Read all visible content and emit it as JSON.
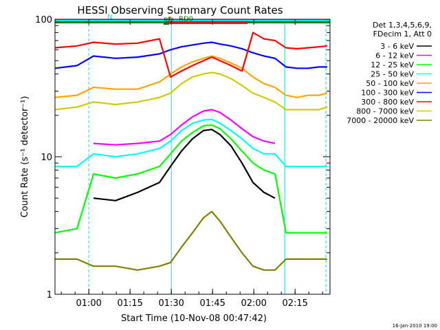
{
  "chart_data": {
    "type": "line",
    "title": "HESSI Observing Summary Count Rates",
    "xlabel": "Start Time (10-Nov-08 00:47:42)",
    "ylabel": "Count Rate (s⁻¹ detector⁻¹)",
    "x_unit": "minutes after 00:47:42",
    "xlim": [
      0,
      100
    ],
    "ylim": [
      1,
      100
    ],
    "yscale": "log",
    "x_ticks": [
      {
        "value": 12.3,
        "label": "01:00"
      },
      {
        "value": 27.3,
        "label": "01:15"
      },
      {
        "value": 42.3,
        "label": "01:30"
      },
      {
        "value": 57.3,
        "label": "01:45"
      },
      {
        "value": 72.3,
        "label": "02:00"
      },
      {
        "value": 87.3,
        "label": "02:15"
      }
    ],
    "y_ticks": [
      {
        "value": 1,
        "label": "1"
      },
      {
        "value": 10,
        "label": "10"
      },
      {
        "value": 100,
        "label": "100"
      }
    ],
    "legend_position": "right",
    "legend_header": [
      "Det 1,3,4,5,6,9,",
      "FDecim 1, Att 0"
    ],
    "footer_date": "16-Jan-2010 19:00",
    "flags": [
      {
        "label": "N",
        "color": "#00e5e5",
        "y": 95,
        "x_start": 0,
        "x_end": 100
      },
      {
        "label": "RD0",
        "color": "#008000",
        "y": 85,
        "x_start": 0,
        "x_end": 100
      },
      {
        "label": "RD",
        "color": "#008000",
        "y": 78,
        "x_start": 39.5,
        "x_end": 41.5
      },
      {
        "label": "F",
        "color": "#ff0000",
        "y": 82,
        "x_start": 41,
        "x_end": 70
      }
    ],
    "vlines": [
      {
        "x": 12.3,
        "color": "#00e5e5",
        "style": "dashed"
      },
      {
        "x": 42.3,
        "color": "#00e5e5",
        "style": "solid"
      },
      {
        "x": 83.5,
        "color": "#00e5e5",
        "style": "solid"
      },
      {
        "x": 98.5,
        "color": "#00e5e5",
        "style": "dashed"
      }
    ],
    "x": [
      0,
      8,
      14,
      22,
      30,
      38,
      42,
      46,
      50,
      54,
      57,
      60,
      64,
      68,
      72,
      76,
      80,
      84,
      88,
      92,
      96,
      99
    ],
    "series": [
      {
        "name": "3 - 6 keV",
        "color": "#000000",
        "values": [
          null,
          null,
          5.0,
          4.8,
          5.5,
          6.5,
          8.5,
          11,
          13.5,
          15.5,
          15.8,
          14.5,
          12,
          9,
          6.5,
          5.5,
          5.0,
          null,
          null,
          null,
          null,
          null
        ]
      },
      {
        "name": "6 - 12 keV",
        "color": "#ff00ff",
        "values": [
          null,
          null,
          12.5,
          12.2,
          12.5,
          13,
          14.5,
          17,
          19.5,
          21.5,
          22,
          21,
          18.5,
          16,
          14,
          13,
          12.5,
          null,
          null,
          null,
          null,
          null
        ]
      },
      {
        "name": "12 - 25 keV",
        "color": "#00ff00",
        "values": [
          2.8,
          3.0,
          7.5,
          7.0,
          7.5,
          8.5,
          10.5,
          13,
          15,
          16.8,
          17,
          16,
          13.5,
          11,
          9,
          8,
          7.5,
          2.8,
          2.8,
          2.8,
          2.8,
          2.8
        ]
      },
      {
        "name": "25 - 50 keV",
        "color": "#00ffff",
        "values": [
          8.5,
          8.5,
          10.5,
          10.0,
          10.5,
          11.5,
          13,
          15.5,
          17.5,
          18.5,
          18.7,
          17.5,
          15.5,
          13.5,
          11.5,
          10.5,
          10.5,
          8.5,
          8.5,
          8.5,
          8.5,
          8.5
        ]
      },
      {
        "name": "50 - 100 keV",
        "color": "#ffa500",
        "values": [
          27,
          28,
          32,
          31,
          31,
          35,
          40,
          45,
          49,
          52,
          54,
          52,
          48,
          44,
          38,
          34,
          32,
          28,
          27,
          28,
          28,
          29
        ]
      },
      {
        "name": "100 - 300 keV",
        "color": "#0000ff",
        "values": [
          44,
          46,
          54,
          52,
          53,
          56,
          60,
          63,
          65,
          67,
          68,
          66,
          64,
          61,
          57,
          54,
          52,
          45,
          44,
          44,
          45,
          45
        ]
      },
      {
        "name": "300 - 800 keV",
        "color": "#ff0000",
        "values": [
          62,
          64,
          68,
          66,
          67,
          72,
          38,
          42,
          46,
          50,
          53,
          50,
          46,
          42,
          80,
          72,
          70,
          62,
          61,
          62,
          63,
          64
        ]
      },
      {
        "name": "800 - 7000 keV",
        "color": "#cccc00",
        "values": [
          22,
          23,
          25,
          24,
          25,
          27,
          29,
          34,
          38,
          40,
          41,
          40,
          37,
          33,
          29,
          27,
          25,
          22,
          22,
          22,
          22,
          23
        ]
      },
      {
        "name": "7000 - 20000 keV",
        "color": "#808000",
        "values": [
          1.8,
          1.8,
          1.6,
          1.6,
          1.5,
          1.6,
          1.7,
          2.2,
          2.8,
          3.6,
          4.0,
          3.4,
          2.6,
          2.0,
          1.6,
          1.5,
          1.5,
          1.8,
          1.8,
          1.8,
          1.8,
          1.8
        ]
      }
    ]
  }
}
